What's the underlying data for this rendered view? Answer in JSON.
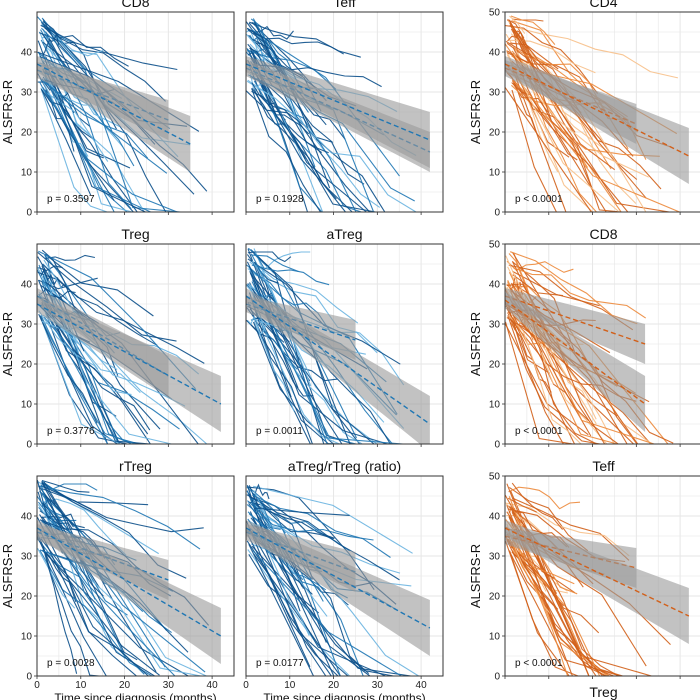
{
  "figure": {
    "left_x_label": "Time since diagnosis (months)",
    "bottom_right_label": "Treg"
  },
  "colors": {
    "blue_dark": "#0b4f8a",
    "blue_mid": "#1f77b4",
    "blue_light": "#6ab4e0",
    "orange_dark": "#d2601a",
    "orange_mid": "#ec8a3c",
    "orange_light": "#f7c08a",
    "ribbon": "#9a9a9a",
    "grid": "#e6e6e6",
    "panel_border": "#333333"
  },
  "chart_data": [
    {
      "type": "line",
      "title": "CD8",
      "palette": "blue",
      "ylabel": "ALSFRS-R",
      "xlabel": "",
      "p_value": "p = 0.3597",
      "xlim": [
        0,
        45
      ],
      "ylim": [
        0,
        50
      ],
      "x_ticks": [
        "0",
        "10",
        "20",
        "30",
        "40"
      ],
      "y_ticks": [
        "0",
        "10",
        "20",
        "30",
        "40"
      ],
      "show_x_ticks": false,
      "show_y_ticks": true,
      "show_ylabel": true,
      "show_xlabel": false,
      "series": [
        {
          "x": [
            0,
            30
          ],
          "y": [
            35.5,
            23
          ]
        },
        {
          "x": [
            0,
            35
          ],
          "y": [
            37,
            17
          ]
        }
      ]
    },
    {
      "type": "line",
      "title": "Teff",
      "palette": "blue",
      "ylabel": "",
      "xlabel": "",
      "p_value": "p = 0.1928",
      "xlim": [
        0,
        45
      ],
      "ylim": [
        0,
        50
      ],
      "x_ticks": [
        "0",
        "10",
        "20",
        "30",
        "40"
      ],
      "y_ticks": [
        "0",
        "10",
        "20",
        "30",
        "40"
      ],
      "show_x_ticks": false,
      "show_y_ticks": false,
      "show_ylabel": false,
      "show_xlabel": false,
      "series": [
        {
          "x": [
            0,
            42
          ],
          "y": [
            36,
            15
          ]
        },
        {
          "x": [
            0,
            42
          ],
          "y": [
            37,
            18
          ]
        }
      ]
    },
    {
      "type": "line",
      "title": "CD4",
      "palette": "orange",
      "ylabel": "ALSFRS-R",
      "xlabel": "",
      "p_value": "p < 0.0001",
      "xlim": [
        0,
        45
      ],
      "ylim": [
        0,
        50
      ],
      "x_ticks": [
        "0",
        "10",
        "20",
        "30",
        "40"
      ],
      "y_ticks": [
        "0",
        "10",
        "20",
        "30",
        "40",
        "50"
      ],
      "show_x_ticks": false,
      "show_y_ticks": true,
      "show_ylabel": true,
      "show_xlabel": false,
      "series": [
        {
          "x": [
            0,
            30
          ],
          "y": [
            36,
            22
          ]
        },
        {
          "x": [
            0,
            42
          ],
          "y": [
            37,
            14
          ]
        }
      ]
    },
    {
      "type": "line",
      "title": "Treg",
      "palette": "blue",
      "ylabel": "ALSFRS-R",
      "xlabel": "",
      "p_value": "p = 0.3776",
      "xlim": [
        0,
        45
      ],
      "ylim": [
        0,
        50
      ],
      "x_ticks": [
        "0",
        "10",
        "20",
        "30",
        "40"
      ],
      "y_ticks": [
        "0",
        "10",
        "20",
        "30",
        "40"
      ],
      "show_x_ticks": false,
      "show_y_ticks": true,
      "show_ylabel": true,
      "show_xlabel": false,
      "series": [
        {
          "x": [
            0,
            30
          ],
          "y": [
            37,
            17
          ]
        },
        {
          "x": [
            0,
            42
          ],
          "y": [
            35,
            10
          ]
        }
      ]
    },
    {
      "type": "line",
      "title": "aTreg",
      "palette": "blue",
      "ylabel": "",
      "xlabel": "",
      "p_value": "p = 0.0011",
      "xlim": [
        0,
        45
      ],
      "ylim": [
        0,
        50
      ],
      "x_ticks": [
        "0",
        "10",
        "20",
        "30",
        "40"
      ],
      "y_ticks": [
        "0",
        "10",
        "20",
        "30",
        "40"
      ],
      "show_x_ticks": false,
      "show_y_ticks": false,
      "show_ylabel": false,
      "show_xlabel": false,
      "series": [
        {
          "x": [
            0,
            25
          ],
          "y": [
            35,
            26
          ]
        },
        {
          "x": [
            0,
            42
          ],
          "y": [
            37,
            5
          ]
        }
      ]
    },
    {
      "type": "line",
      "title": "CD8",
      "palette": "orange",
      "ylabel": "ALSFRS-R",
      "xlabel": "",
      "p_value": "p < 0.0001",
      "xlim": [
        0,
        45
      ],
      "ylim": [
        0,
        50
      ],
      "x_ticks": [
        "0",
        "10",
        "20",
        "30",
        "40"
      ],
      "y_ticks": [
        "0",
        "10",
        "20",
        "30",
        "40",
        "50"
      ],
      "show_x_ticks": false,
      "show_y_ticks": true,
      "show_ylabel": true,
      "show_xlabel": false,
      "series": [
        {
          "x": [
            0,
            32
          ],
          "y": [
            37,
            25
          ]
        },
        {
          "x": [
            0,
            32
          ],
          "y": [
            36,
            10
          ]
        }
      ]
    },
    {
      "type": "line",
      "title": "rTreg",
      "palette": "blue",
      "ylabel": "ALSFRS-R",
      "xlabel": "Time since diagnosis (months)",
      "p_value": "p = 0.0028",
      "xlim": [
        0,
        45
      ],
      "ylim": [
        0,
        50
      ],
      "x_ticks": [
        "0",
        "10",
        "20",
        "30",
        "40"
      ],
      "y_ticks": [
        "0",
        "10",
        "20",
        "30",
        "40"
      ],
      "show_x_ticks": true,
      "show_y_ticks": true,
      "show_ylabel": true,
      "show_xlabel": true,
      "series": [
        {
          "x": [
            0,
            30
          ],
          "y": [
            36,
            24
          ]
        },
        {
          "x": [
            0,
            42
          ],
          "y": [
            37,
            10
          ]
        }
      ]
    },
    {
      "type": "line",
      "title": "aTreg/rTreg (ratio)",
      "palette": "blue",
      "ylabel": "",
      "xlabel": "Time since diagnosis (months)",
      "p_value": "p = 0.0177",
      "xlim": [
        0,
        45
      ],
      "ylim": [
        0,
        50
      ],
      "x_ticks": [
        "0",
        "10",
        "20",
        "30",
        "40"
      ],
      "y_ticks": [
        "0",
        "10",
        "20",
        "30",
        "40"
      ],
      "show_x_ticks": true,
      "show_y_ticks": false,
      "show_ylabel": false,
      "show_xlabel": true,
      "series": [
        {
          "x": [
            0,
            25
          ],
          "y": [
            36,
            26
          ]
        },
        {
          "x": [
            0,
            42
          ],
          "y": [
            37,
            12
          ]
        }
      ]
    },
    {
      "type": "line",
      "title": "Teff",
      "palette": "orange",
      "ylabel": "ALSFRS-R",
      "xlabel": "",
      "p_value": "p < 0.0001",
      "xlim": [
        0,
        45
      ],
      "ylim": [
        0,
        50
      ],
      "x_ticks": [
        "0",
        "10",
        "20",
        "30",
        "40"
      ],
      "y_ticks": [
        "0",
        "10",
        "20",
        "30",
        "40",
        "50"
      ],
      "show_x_ticks": false,
      "show_y_ticks": true,
      "show_ylabel": true,
      "show_xlabel": false,
      "series": [
        {
          "x": [
            0,
            30
          ],
          "y": [
            35,
            27
          ]
        },
        {
          "x": [
            0,
            42
          ],
          "y": [
            37,
            15
          ]
        }
      ]
    }
  ]
}
